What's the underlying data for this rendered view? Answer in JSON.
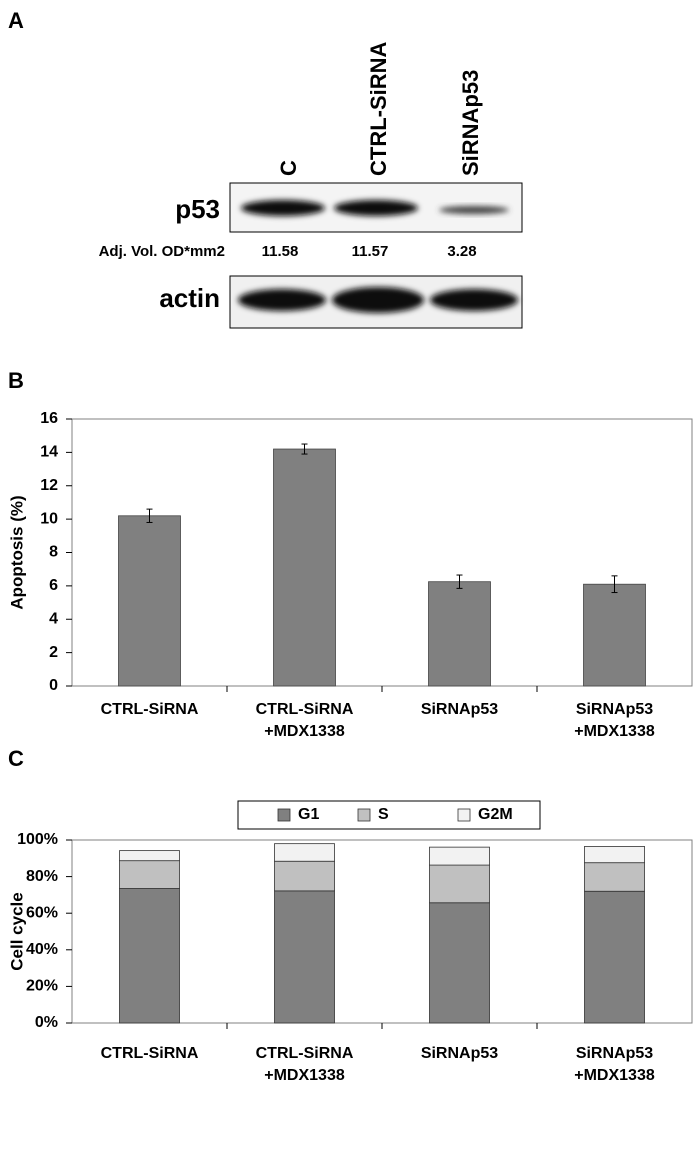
{
  "blot": {
    "panel_label": "A",
    "lanes": [
      "C",
      "CTRL-SiRNA",
      "SiRNAp53"
    ],
    "rows": [
      "p53",
      "actin"
    ],
    "quant_label": "Adj. Vol. OD*mm2",
    "quant_values": [
      11.58,
      11.57,
      3.28
    ]
  },
  "chart_data": [
    {
      "type": "bar",
      "panel_label": "B",
      "ylabel": "Apoptosis (%)",
      "categories": [
        [
          "CTRL-SiRNA"
        ],
        [
          "CTRL-SiRNA",
          "+MDX1338"
        ],
        [
          "SiRNAp53"
        ],
        [
          "SiRNAp53",
          "+MDX1338"
        ]
      ],
      "values": [
        10.2,
        14.2,
        6.25,
        6.1
      ],
      "errors": [
        0.4,
        0.3,
        0.4,
        0.5
      ],
      "color": "#808080",
      "ylim": [
        0,
        16
      ],
      "yticks": [
        0,
        2,
        4,
        6,
        8,
        10,
        12,
        14,
        16
      ]
    },
    {
      "type": "stacked_bar",
      "panel_label": "C",
      "ylabel": "Cell cycle",
      "categories": [
        [
          "CTRL-SiRNA"
        ],
        [
          "CTRL-SiRNA",
          "+MDX1338"
        ],
        [
          "SiRNAp53"
        ],
        [
          "SiRNAp53",
          "+MDX1338"
        ]
      ],
      "series": [
        {
          "name": "G1",
          "color": "#808080",
          "values": [
            73.5,
            72.2,
            65.7,
            72.0
          ]
        },
        {
          "name": "S",
          "color": "#c0c0c0",
          "values": [
            15.2,
            16.2,
            20.6,
            15.6
          ]
        },
        {
          "name": "G2M",
          "color": "#f2f2f2",
          "values": [
            5.5,
            9.6,
            9.8,
            8.9
          ]
        }
      ],
      "ylim": [
        0,
        100
      ],
      "yticks": [
        {
          "value": 0,
          "label": "0%"
        },
        {
          "value": 20,
          "label": "20%"
        },
        {
          "value": 40,
          "label": "40%"
        },
        {
          "value": 60,
          "label": "60%"
        },
        {
          "value": 80,
          "label": "80%"
        },
        {
          "value": 100,
          "label": "100%"
        }
      ],
      "legend": "top"
    }
  ]
}
